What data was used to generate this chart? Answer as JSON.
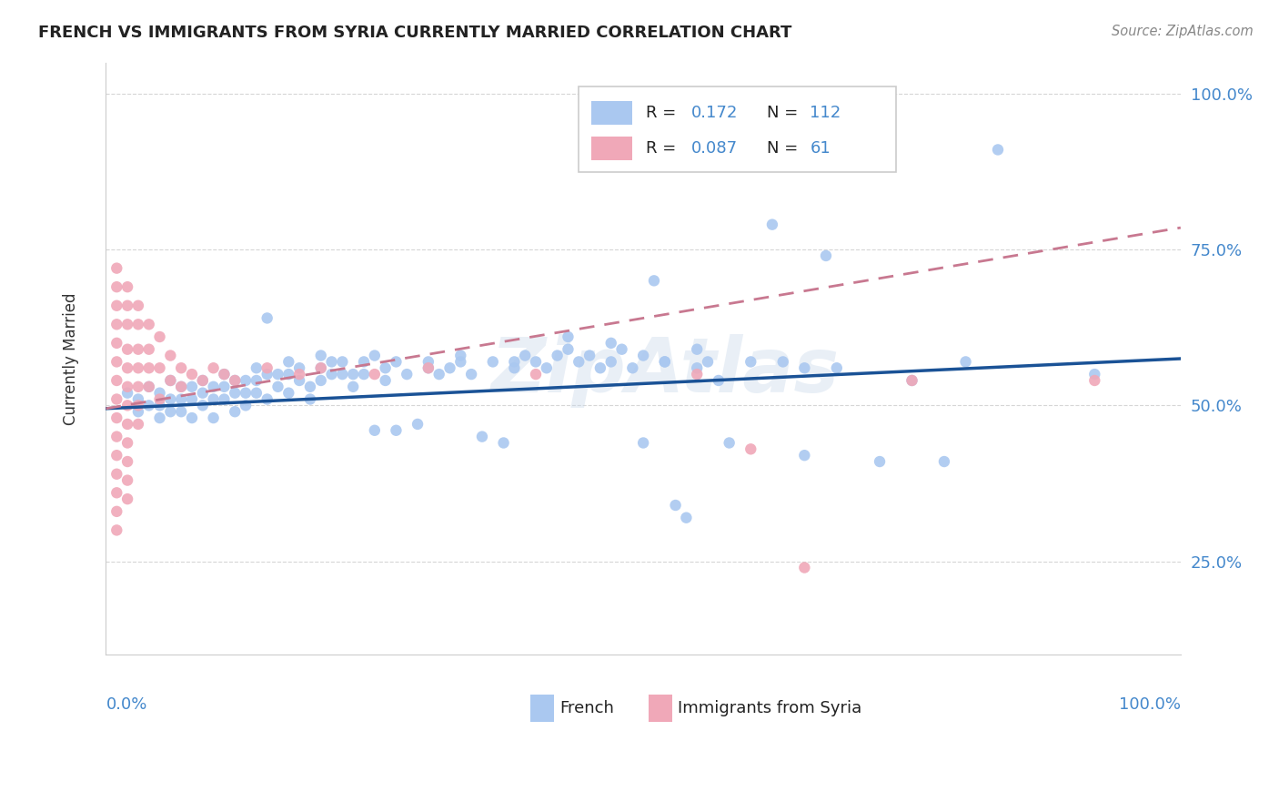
{
  "title": "FRENCH VS IMMIGRANTS FROM SYRIA CURRENTLY MARRIED CORRELATION CHART",
  "source": "Source: ZipAtlas.com",
  "ylabel": "Currently Married",
  "watermark": "ZipAtlas",
  "blue_color": "#aac8f0",
  "pink_color": "#f0a8b8",
  "blue_line_color": "#1a5296",
  "pink_line_color": "#c87890",
  "grid_color": "#cccccc",
  "french_scatter": [
    [
      0.02,
      0.52
    ],
    [
      0.03,
      0.51
    ],
    [
      0.03,
      0.49
    ],
    [
      0.04,
      0.53
    ],
    [
      0.04,
      0.5
    ],
    [
      0.05,
      0.52
    ],
    [
      0.05,
      0.5
    ],
    [
      0.05,
      0.48
    ],
    [
      0.06,
      0.54
    ],
    [
      0.06,
      0.51
    ],
    [
      0.06,
      0.49
    ],
    [
      0.07,
      0.53
    ],
    [
      0.07,
      0.51
    ],
    [
      0.07,
      0.49
    ],
    [
      0.08,
      0.53
    ],
    [
      0.08,
      0.51
    ],
    [
      0.08,
      0.48
    ],
    [
      0.09,
      0.54
    ],
    [
      0.09,
      0.52
    ],
    [
      0.09,
      0.5
    ],
    [
      0.1,
      0.53
    ],
    [
      0.1,
      0.51
    ],
    [
      0.1,
      0.48
    ],
    [
      0.11,
      0.55
    ],
    [
      0.11,
      0.53
    ],
    [
      0.11,
      0.51
    ],
    [
      0.12,
      0.54
    ],
    [
      0.12,
      0.52
    ],
    [
      0.12,
      0.49
    ],
    [
      0.13,
      0.54
    ],
    [
      0.13,
      0.52
    ],
    [
      0.13,
      0.5
    ],
    [
      0.14,
      0.56
    ],
    [
      0.14,
      0.54
    ],
    [
      0.14,
      0.52
    ],
    [
      0.15,
      0.64
    ],
    [
      0.15,
      0.55
    ],
    [
      0.15,
      0.51
    ],
    [
      0.16,
      0.55
    ],
    [
      0.16,
      0.53
    ],
    [
      0.17,
      0.57
    ],
    [
      0.17,
      0.55
    ],
    [
      0.17,
      0.52
    ],
    [
      0.18,
      0.56
    ],
    [
      0.18,
      0.54
    ],
    [
      0.19,
      0.53
    ],
    [
      0.19,
      0.51
    ],
    [
      0.2,
      0.58
    ],
    [
      0.2,
      0.56
    ],
    [
      0.2,
      0.54
    ],
    [
      0.21,
      0.57
    ],
    [
      0.21,
      0.55
    ],
    [
      0.22,
      0.57
    ],
    [
      0.22,
      0.55
    ],
    [
      0.23,
      0.55
    ],
    [
      0.23,
      0.53
    ],
    [
      0.24,
      0.57
    ],
    [
      0.24,
      0.55
    ],
    [
      0.25,
      0.58
    ],
    [
      0.25,
      0.46
    ],
    [
      0.26,
      0.56
    ],
    [
      0.26,
      0.54
    ],
    [
      0.27,
      0.57
    ],
    [
      0.27,
      0.46
    ],
    [
      0.28,
      0.55
    ],
    [
      0.29,
      0.47
    ],
    [
      0.3,
      0.57
    ],
    [
      0.3,
      0.56
    ],
    [
      0.31,
      0.55
    ],
    [
      0.32,
      0.56
    ],
    [
      0.33,
      0.58
    ],
    [
      0.33,
      0.57
    ],
    [
      0.34,
      0.55
    ],
    [
      0.35,
      0.45
    ],
    [
      0.36,
      0.57
    ],
    [
      0.37,
      0.44
    ],
    [
      0.38,
      0.57
    ],
    [
      0.38,
      0.56
    ],
    [
      0.39,
      0.58
    ],
    [
      0.4,
      0.57
    ],
    [
      0.41,
      0.56
    ],
    [
      0.42,
      0.58
    ],
    [
      0.43,
      0.61
    ],
    [
      0.43,
      0.59
    ],
    [
      0.44,
      0.57
    ],
    [
      0.45,
      0.58
    ],
    [
      0.46,
      0.56
    ],
    [
      0.47,
      0.6
    ],
    [
      0.47,
      0.57
    ],
    [
      0.48,
      0.59
    ],
    [
      0.49,
      0.56
    ],
    [
      0.5,
      0.58
    ],
    [
      0.5,
      0.44
    ],
    [
      0.51,
      0.7
    ],
    [
      0.52,
      0.57
    ],
    [
      0.52,
      0.57
    ],
    [
      0.53,
      0.34
    ],
    [
      0.54,
      0.32
    ],
    [
      0.55,
      0.59
    ],
    [
      0.55,
      0.56
    ],
    [
      0.56,
      0.57
    ],
    [
      0.57,
      0.54
    ],
    [
      0.58,
      0.44
    ],
    [
      0.6,
      0.57
    ],
    [
      0.62,
      0.79
    ],
    [
      0.63,
      0.57
    ],
    [
      0.65,
      0.56
    ],
    [
      0.65,
      0.42
    ],
    [
      0.67,
      0.74
    ],
    [
      0.68,
      0.56
    ],
    [
      0.72,
      0.41
    ],
    [
      0.75,
      0.54
    ],
    [
      0.78,
      0.41
    ],
    [
      0.8,
      0.57
    ],
    [
      0.83,
      0.91
    ],
    [
      0.92,
      0.55
    ]
  ],
  "syria_scatter": [
    [
      0.01,
      0.72
    ],
    [
      0.01,
      0.69
    ],
    [
      0.01,
      0.66
    ],
    [
      0.01,
      0.63
    ],
    [
      0.01,
      0.6
    ],
    [
      0.01,
      0.57
    ],
    [
      0.01,
      0.54
    ],
    [
      0.01,
      0.51
    ],
    [
      0.01,
      0.48
    ],
    [
      0.01,
      0.45
    ],
    [
      0.01,
      0.42
    ],
    [
      0.01,
      0.39
    ],
    [
      0.01,
      0.36
    ],
    [
      0.01,
      0.33
    ],
    [
      0.01,
      0.3
    ],
    [
      0.02,
      0.69
    ],
    [
      0.02,
      0.66
    ],
    [
      0.02,
      0.63
    ],
    [
      0.02,
      0.59
    ],
    [
      0.02,
      0.56
    ],
    [
      0.02,
      0.53
    ],
    [
      0.02,
      0.5
    ],
    [
      0.02,
      0.47
    ],
    [
      0.02,
      0.44
    ],
    [
      0.02,
      0.41
    ],
    [
      0.02,
      0.38
    ],
    [
      0.02,
      0.35
    ],
    [
      0.03,
      0.66
    ],
    [
      0.03,
      0.63
    ],
    [
      0.03,
      0.59
    ],
    [
      0.03,
      0.56
    ],
    [
      0.03,
      0.53
    ],
    [
      0.03,
      0.5
    ],
    [
      0.03,
      0.47
    ],
    [
      0.04,
      0.63
    ],
    [
      0.04,
      0.59
    ],
    [
      0.04,
      0.56
    ],
    [
      0.04,
      0.53
    ],
    [
      0.05,
      0.61
    ],
    [
      0.05,
      0.56
    ],
    [
      0.05,
      0.51
    ],
    [
      0.06,
      0.58
    ],
    [
      0.06,
      0.54
    ],
    [
      0.07,
      0.56
    ],
    [
      0.07,
      0.53
    ],
    [
      0.08,
      0.55
    ],
    [
      0.09,
      0.54
    ],
    [
      0.1,
      0.56
    ],
    [
      0.11,
      0.55
    ],
    [
      0.12,
      0.54
    ],
    [
      0.15,
      0.56
    ],
    [
      0.18,
      0.55
    ],
    [
      0.2,
      0.56
    ],
    [
      0.25,
      0.55
    ],
    [
      0.3,
      0.56
    ],
    [
      0.4,
      0.55
    ],
    [
      0.55,
      0.55
    ],
    [
      0.6,
      0.43
    ],
    [
      0.65,
      0.24
    ],
    [
      0.75,
      0.54
    ],
    [
      0.92,
      0.54
    ]
  ],
  "xlim": [
    0.0,
    1.0
  ],
  "ylim": [
    0.1,
    1.05
  ],
  "yticks": [
    0.25,
    0.5,
    0.75,
    1.0
  ],
  "ytick_labels": [
    "25.0%",
    "50.0%",
    "75.0%",
    "100.0%"
  ],
  "french_trendline": [
    0.495,
    0.575
  ],
  "syria_trendline": [
    0.495,
    0.785
  ]
}
